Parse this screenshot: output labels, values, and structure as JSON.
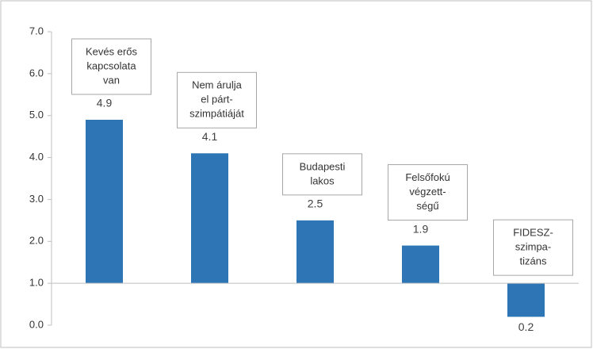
{
  "chart_data": {
    "type": "bar",
    "categories": [
      [
        "Kevés erős",
        "kapcsolata",
        "van"
      ],
      [
        "Nem árulja",
        "el párt-",
        "szimpátiáját"
      ],
      [
        "Budapesti",
        "lakos"
      ],
      [
        "Felsőfokú",
        "végzett-",
        "ségű"
      ],
      [
        "FIDESZ-",
        "szimpa-",
        "tizáns"
      ]
    ],
    "values": [
      4.9,
      4.1,
      2.5,
      1.9,
      0.2
    ],
    "value_labels": [
      "4.9",
      "4.1",
      "2.5",
      "1.9",
      "0.2"
    ],
    "color": "#2e75b6",
    "base_value": 1,
    "ylim": [
      0,
      7
    ],
    "yticks": [
      {
        "value": 0,
        "label": "0.0"
      },
      {
        "value": 1,
        "label": "1.0"
      },
      {
        "value": 2,
        "label": "2.0"
      },
      {
        "value": 3,
        "label": "3.0"
      },
      {
        "value": 4,
        "label": "4.0"
      },
      {
        "value": 5,
        "label": "5.0"
      },
      {
        "value": 6,
        "label": "6.0"
      },
      {
        "value": 7,
        "label": "7.0"
      }
    ],
    "grid": false
  }
}
